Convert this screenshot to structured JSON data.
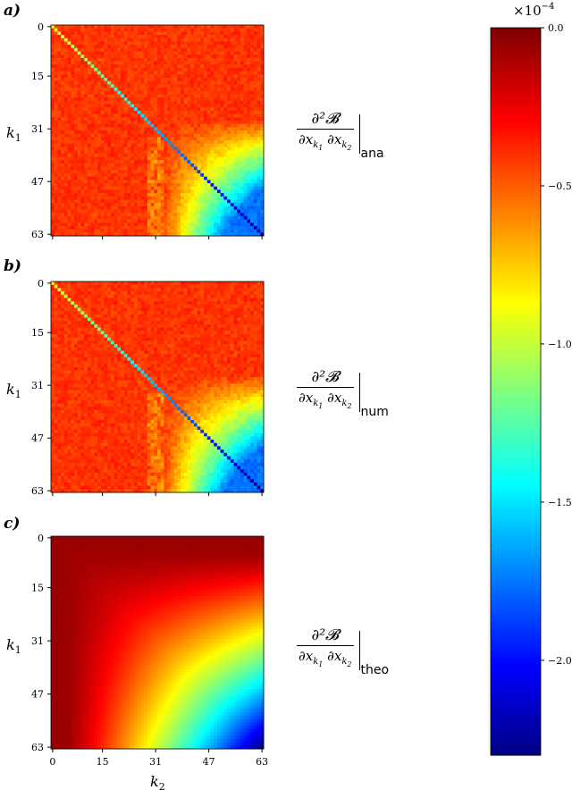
{
  "figure": {
    "panels": [
      {
        "label": "a)",
        "formula": {
          "numerator": "∂²𝓑",
          "denominator": "∂x_{k1} ∂x_{k2}",
          "subscript": "ana"
        }
      },
      {
        "label": "b)",
        "formula": {
          "numerator": "∂²𝓑",
          "denominator": "∂x_{k1} ∂x_{k2}",
          "subscript": "num"
        }
      },
      {
        "label": "c)",
        "formula": {
          "numerator": "∂²𝓑",
          "denominator": "∂x_{k1} ∂x_{k2}",
          "subscript": "theo"
        }
      }
    ],
    "ylabel_base": "k",
    "ylabel_sub": "1",
    "xlabel_base": "k",
    "xlabel_sub": "2"
  },
  "chart_data": [
    {
      "type": "heatmap",
      "title": "",
      "rows": 64,
      "cols": 64,
      "x_ticks": [
        0,
        15,
        31,
        47,
        63
      ],
      "y_ticks": [
        0,
        15,
        31,
        47,
        63
      ],
      "xlabel": "",
      "ylabel": "k1",
      "value_range": [
        -0.00023,
        0.0
      ],
      "description_values": {
        "background": -3.5e-05,
        "diagonal_start": -9e-05,
        "diagonal_end": -0.00023,
        "bottom_right_block": -0.00015
      }
    },
    {
      "type": "heatmap",
      "title": "",
      "rows": 64,
      "cols": 64,
      "x_ticks": [
        0,
        15,
        31,
        47,
        63
      ],
      "y_ticks": [
        0,
        15,
        31,
        47,
        63
      ],
      "xlabel": "",
      "ylabel": "k1",
      "value_range": [
        -0.00023,
        0.0
      ],
      "description_values": {
        "background": -3.5e-05,
        "diagonal_start": -9e-05,
        "diagonal_end": -0.00023,
        "bottom_right_block": -0.00015
      }
    },
    {
      "type": "heatmap",
      "title": "",
      "rows": 64,
      "cols": 64,
      "x_ticks": [
        0,
        15,
        31,
        47,
        63
      ],
      "y_ticks": [
        0,
        15,
        31,
        47,
        63
      ],
      "xlabel": "k2",
      "ylabel": "k1",
      "value_range": [
        -0.00023,
        0.0
      ],
      "description_values": {
        "background": 0.0,
        "bottom_right_corner": -0.00023
      }
    }
  ],
  "colorbar": {
    "multiplier": "×10",
    "exponent": "−4",
    "ticks": [
      0.0,
      -0.5,
      -1.0,
      -1.5,
      -2.0
    ],
    "tick_labels": [
      "0.0",
      "−0.5",
      "−1.0",
      "−1.5",
      "−2.0"
    ],
    "range": [
      -2.3,
      0.0
    ],
    "colormap": "jet"
  }
}
